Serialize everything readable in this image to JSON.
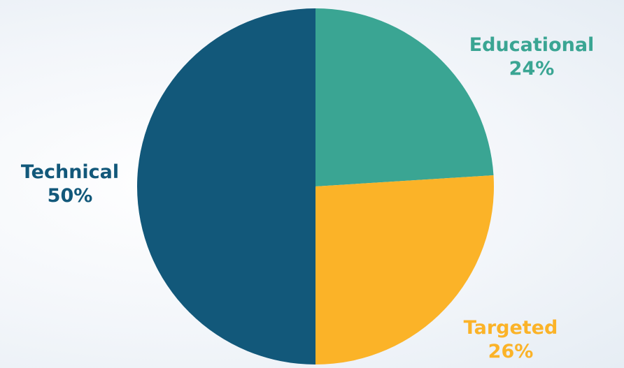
{
  "chart_data": {
    "type": "pie",
    "slices": [
      {
        "name": "Educational",
        "value": 24,
        "label": "24%",
        "color": "#3aa593"
      },
      {
        "name": "Targeted",
        "value": 26,
        "label": "26%",
        "color": "#fbb328"
      },
      {
        "name": "Technical",
        "value": 50,
        "label": "50%",
        "color": "#12587a"
      }
    ],
    "start_angle": "12 o'clock",
    "direction": "clockwise",
    "legend": "none"
  }
}
